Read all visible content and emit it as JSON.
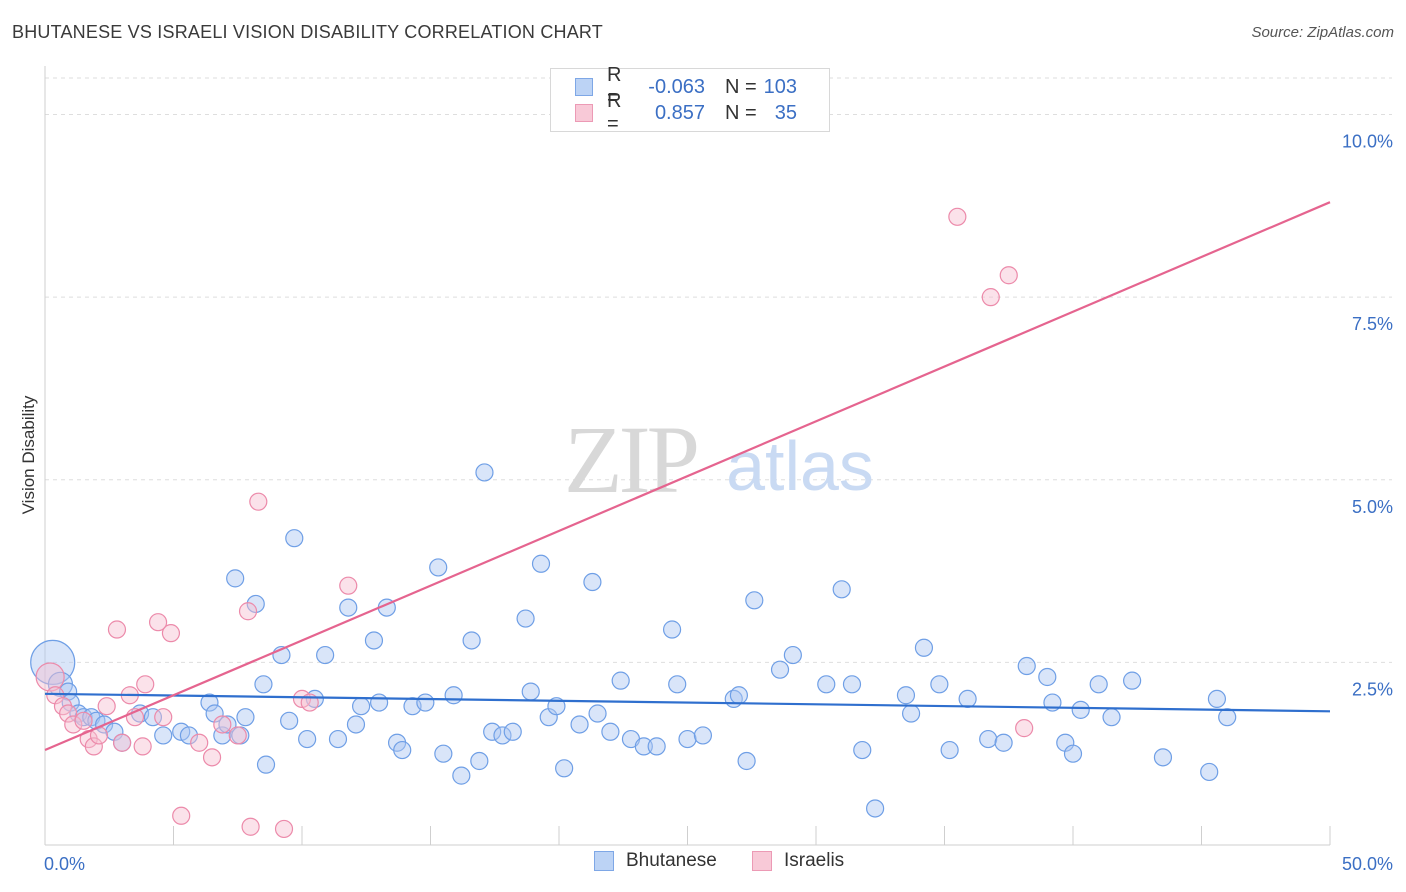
{
  "title": "BHUTANESE VS ISRAELI VISION DISABILITY CORRELATION CHART",
  "source": "Source: ZipAtlas.com",
  "watermark": {
    "zip": "ZIP",
    "atlas": "atlas"
  },
  "colors": {
    "blue": "#6f9fe6",
    "blue_fill": "#aac6f2",
    "pink": "#ec8aaa",
    "pink_fill": "#f6bfd0",
    "blue_line": "#2f6fce",
    "pink_line": "#e5648f",
    "axis_text": "#3b6fc4"
  },
  "legend": {
    "rows": [
      {
        "r_label": "R =",
        "r_value": "-0.063",
        "n_label": "N =",
        "n_value": "103"
      },
      {
        "r_label": "R =",
        "r_value": "0.857",
        "n_label": "N =",
        "n_value": "35"
      }
    ]
  },
  "bottom_legend": [
    "Bhutanese",
    "Israelis"
  ],
  "chart_data": {
    "type": "scatter",
    "xlabel": "",
    "ylabel": "Vision Disability",
    "xlim": [
      0,
      50
    ],
    "ylim": [
      0,
      10.5
    ],
    "x_tick_labels": [
      "0.0%",
      "50.0%"
    ],
    "y_ticks": [
      2.5,
      5.0,
      7.5,
      10.0
    ],
    "y_tick_labels": [
      "2.5%",
      "5.0%",
      "7.5%",
      "10.0%"
    ],
    "series": [
      {
        "name": "Bhutanese",
        "trend": {
          "x": [
            0,
            50
          ],
          "y": [
            2.07,
            1.83
          ]
        },
        "points": [
          [
            0.3,
            2.5
          ],
          [
            0.6,
            2.2
          ],
          [
            0.9,
            2.1
          ],
          [
            1.0,
            1.95
          ],
          [
            1.3,
            1.8
          ],
          [
            1.5,
            1.75
          ],
          [
            1.8,
            1.75
          ],
          [
            2.0,
            1.7
          ],
          [
            2.3,
            1.65
          ],
          [
            2.7,
            1.55
          ],
          [
            3.0,
            1.4
          ],
          [
            3.7,
            1.8
          ],
          [
            4.2,
            1.75
          ],
          [
            4.6,
            1.5
          ],
          [
            5.3,
            1.55
          ],
          [
            5.6,
            1.5
          ],
          [
            6.4,
            1.95
          ],
          [
            6.6,
            1.8
          ],
          [
            6.9,
            1.5
          ],
          [
            7.1,
            1.65
          ],
          [
            7.4,
            3.65
          ],
          [
            7.6,
            1.5
          ],
          [
            7.8,
            1.75
          ],
          [
            8.2,
            3.3
          ],
          [
            8.5,
            2.2
          ],
          [
            8.6,
            1.1
          ],
          [
            9.2,
            2.6
          ],
          [
            9.5,
            1.7
          ],
          [
            9.7,
            4.2
          ],
          [
            10.2,
            1.45
          ],
          [
            10.5,
            2.0
          ],
          [
            10.9,
            2.6
          ],
          [
            11.4,
            1.45
          ],
          [
            11.8,
            3.25
          ],
          [
            12.1,
            1.65
          ],
          [
            12.3,
            1.9
          ],
          [
            12.8,
            2.8
          ],
          [
            13.0,
            1.95
          ],
          [
            13.3,
            3.25
          ],
          [
            13.7,
            1.4
          ],
          [
            13.9,
            1.3
          ],
          [
            14.3,
            1.9
          ],
          [
            14.8,
            1.95
          ],
          [
            15.3,
            3.8
          ],
          [
            15.5,
            1.25
          ],
          [
            15.9,
            2.05
          ],
          [
            16.2,
            0.95
          ],
          [
            16.6,
            2.8
          ],
          [
            16.9,
            1.15
          ],
          [
            17.1,
            5.1
          ],
          [
            17.4,
            1.55
          ],
          [
            17.8,
            1.5
          ],
          [
            18.2,
            1.55
          ],
          [
            18.7,
            3.1
          ],
          [
            18.9,
            2.1
          ],
          [
            19.3,
            3.85
          ],
          [
            19.6,
            1.75
          ],
          [
            19.9,
            1.9
          ],
          [
            20.2,
            1.05
          ],
          [
            20.8,
            1.65
          ],
          [
            21.3,
            3.6
          ],
          [
            21.5,
            1.8
          ],
          [
            22.0,
            1.55
          ],
          [
            22.4,
            2.25
          ],
          [
            22.8,
            1.45
          ],
          [
            23.3,
            1.35
          ],
          [
            23.8,
            1.35
          ],
          [
            24.4,
            2.95
          ],
          [
            24.6,
            2.2
          ],
          [
            25.0,
            1.45
          ],
          [
            25.6,
            1.5
          ],
          [
            26.8,
            2.0
          ],
          [
            27.0,
            2.05
          ],
          [
            27.3,
            1.15
          ],
          [
            27.6,
            3.35
          ],
          [
            28.6,
            2.4
          ],
          [
            29.1,
            2.6
          ],
          [
            30.4,
            2.2
          ],
          [
            31.0,
            3.5
          ],
          [
            31.4,
            2.2
          ],
          [
            31.8,
            1.3
          ],
          [
            32.3,
            0.5
          ],
          [
            33.5,
            2.05
          ],
          [
            33.7,
            1.8
          ],
          [
            34.2,
            2.7
          ],
          [
            34.8,
            2.2
          ],
          [
            35.2,
            1.3
          ],
          [
            35.9,
            2.0
          ],
          [
            36.7,
            1.45
          ],
          [
            37.3,
            1.4
          ],
          [
            38.2,
            2.45
          ],
          [
            39.0,
            2.3
          ],
          [
            39.2,
            1.95
          ],
          [
            39.7,
            1.4
          ],
          [
            40.0,
            1.25
          ],
          [
            40.3,
            1.85
          ],
          [
            41.0,
            2.2
          ],
          [
            41.5,
            1.75
          ],
          [
            42.3,
            2.25
          ],
          [
            43.5,
            1.2
          ],
          [
            45.3,
            1.0
          ],
          [
            45.6,
            2.0
          ],
          [
            46.0,
            1.75
          ]
        ]
      },
      {
        "name": "Israelis",
        "trend": {
          "x": [
            0,
            50
          ],
          "y": [
            1.3,
            8.8
          ]
        },
        "points": [
          [
            0.2,
            2.3
          ],
          [
            0.4,
            2.05
          ],
          [
            0.7,
            1.9
          ],
          [
            0.9,
            1.8
          ],
          [
            1.1,
            1.65
          ],
          [
            1.5,
            1.7
          ],
          [
            1.7,
            1.45
          ],
          [
            1.9,
            1.35
          ],
          [
            2.1,
            1.5
          ],
          [
            2.4,
            1.9
          ],
          [
            2.8,
            2.95
          ],
          [
            3.0,
            1.4
          ],
          [
            3.3,
            2.05
          ],
          [
            3.5,
            1.75
          ],
          [
            3.8,
            1.35
          ],
          [
            3.9,
            2.2
          ],
          [
            4.4,
            3.05
          ],
          [
            4.6,
            1.75
          ],
          [
            4.9,
            2.9
          ],
          [
            5.3,
            0.4
          ],
          [
            6.0,
            1.4
          ],
          [
            6.5,
            1.2
          ],
          [
            6.9,
            1.65
          ],
          [
            7.5,
            1.5
          ],
          [
            7.9,
            3.2
          ],
          [
            8.0,
            0.25
          ],
          [
            8.3,
            4.7
          ],
          [
            9.3,
            0.22
          ],
          [
            10.0,
            2.0
          ],
          [
            10.3,
            1.95
          ],
          [
            11.8,
            3.55
          ],
          [
            35.5,
            8.6
          ],
          [
            36.8,
            7.5
          ],
          [
            37.5,
            7.8
          ],
          [
            38.1,
            1.6
          ]
        ]
      }
    ]
  }
}
